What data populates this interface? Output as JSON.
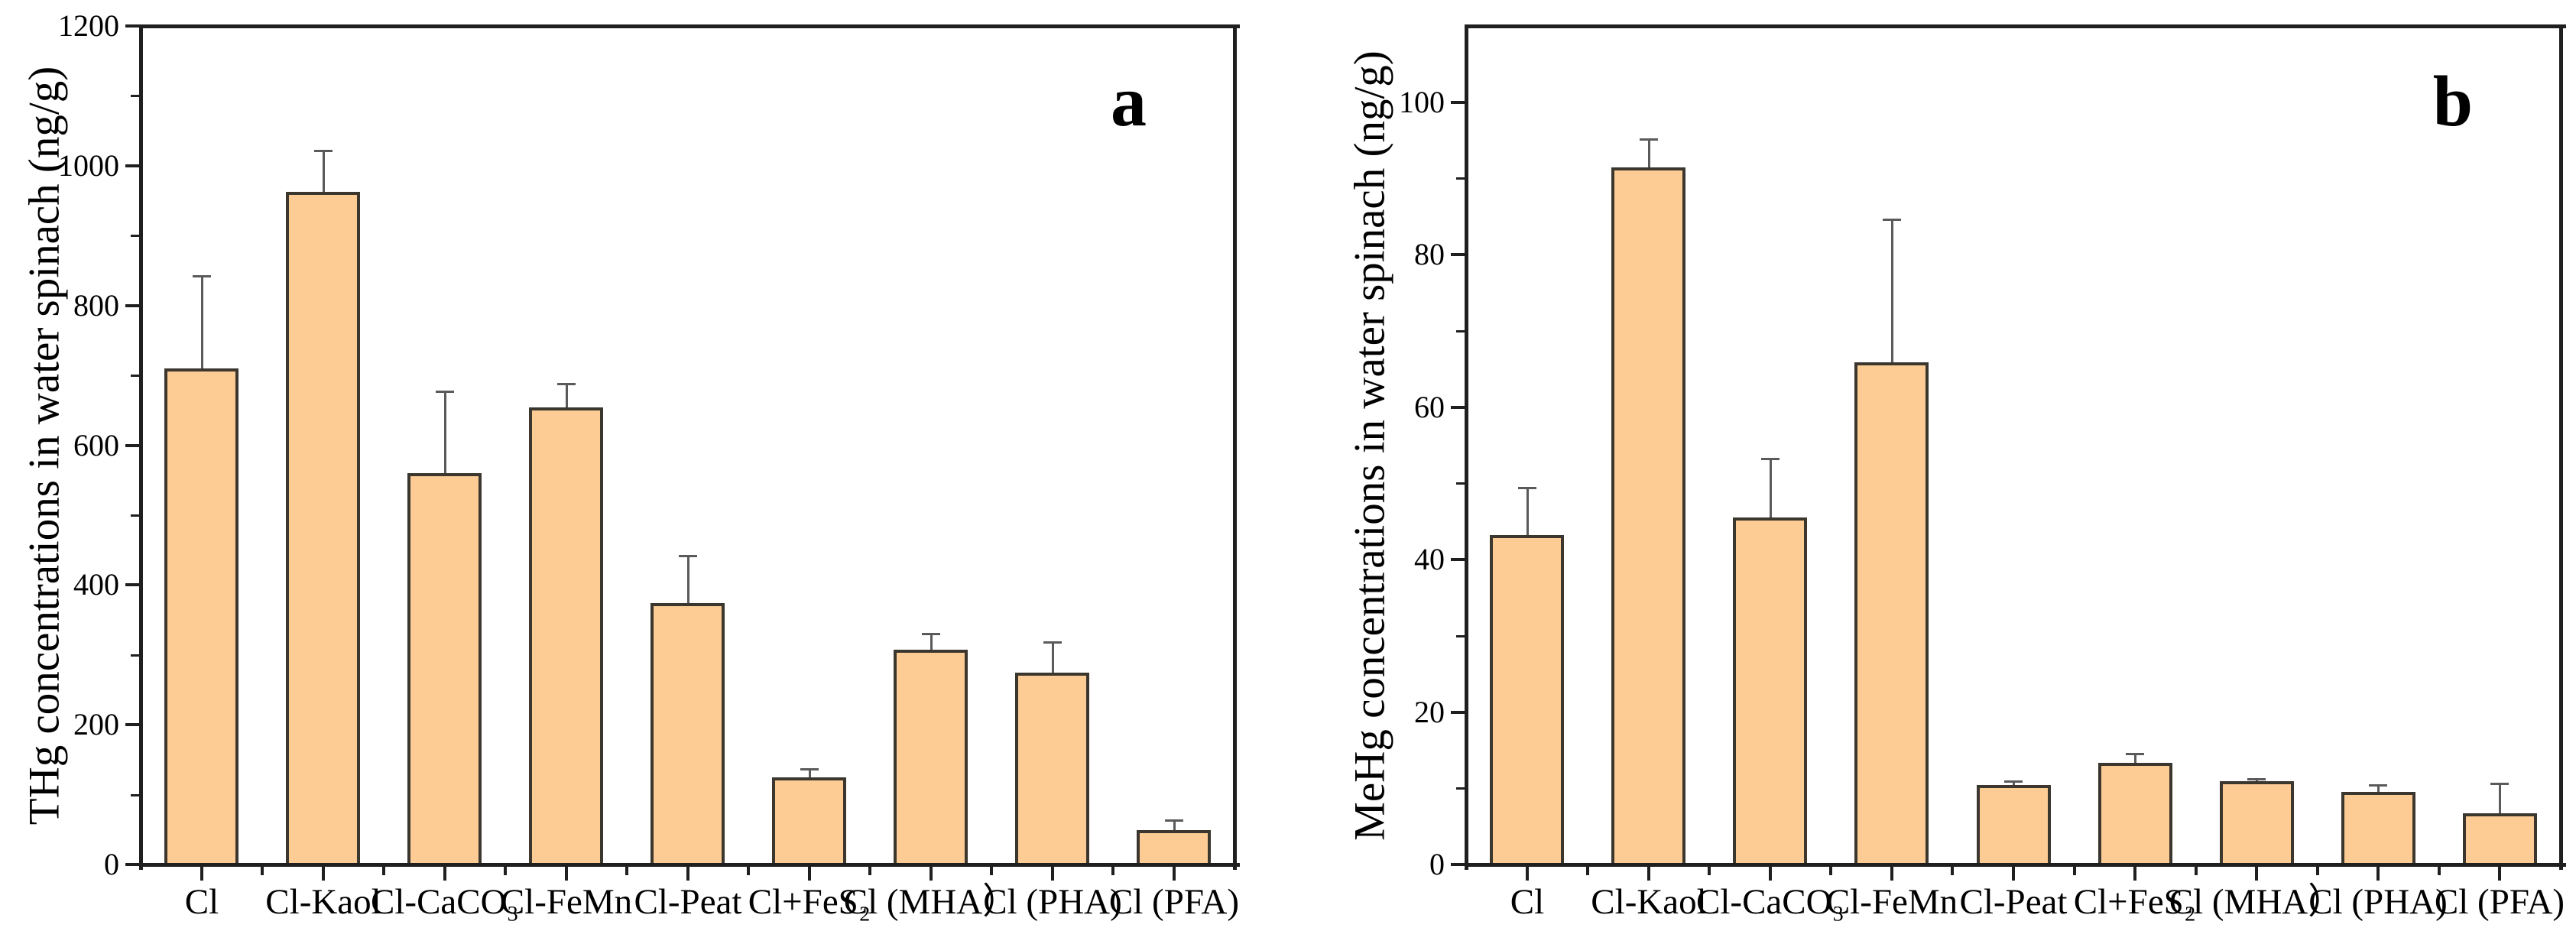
{
  "figure": {
    "background_color": "#ffffff",
    "axis_color": "#1f1f1f",
    "bar_fill_color": "#FDCC94",
    "bar_edge_color": "#3B362E",
    "error_bar_color": "#5a5a5a"
  },
  "chart_data": [
    {
      "type": "bar",
      "panel_label": "a",
      "title": "",
      "xlabel": "",
      "ylabel": "THg concentrations in water spinach (ng/g)",
      "categories": [
        "Cl",
        "Cl-Kaol",
        "Cl-CaCO₃",
        "Cl-FeMn",
        "Cl-Peat",
        "Cl+FeS₂",
        "Cl (MHA）",
        "Cl (PHA)",
        "Cl (PFA)"
      ],
      "values": [
        708,
        960,
        558,
        652,
        372,
        122,
        305,
        272,
        47
      ],
      "errors_plus": [
        132,
        60,
        117,
        34,
        68,
        13,
        23,
        44,
        14
      ],
      "ylim": [
        0,
        1200
      ],
      "yticks": [
        0,
        200,
        400,
        600,
        800,
        1000,
        1200
      ],
      "yminor_step": 100,
      "grid": false,
      "legend": null
    },
    {
      "type": "bar",
      "panel_label": "b",
      "title": "",
      "xlabel": "",
      "ylabel": "MeHg concentrations in water spinach (ng/g)",
      "categories": [
        "Cl",
        "Cl-Kaol",
        "Cl-CaCO₃",
        "Cl-FeMn",
        "Cl-Peat",
        "Cl+FeS₂",
        "Cl (MHA）",
        "Cl (PHA)",
        "Cl (PFA)"
      ],
      "values": [
        43.0,
        91.2,
        45.3,
        65.7,
        10.2,
        13.1,
        10.7,
        9.3,
        6.5
      ],
      "errors_plus": [
        6.2,
        3.8,
        7.7,
        18.7,
        0.5,
        1.2,
        0.3,
        0.9,
        3.9
      ],
      "ylim": [
        0,
        110
      ],
      "yticks": [
        0,
        20,
        40,
        60,
        80,
        100
      ],
      "yminor_step": 10,
      "grid": false,
      "legend": null
    }
  ]
}
